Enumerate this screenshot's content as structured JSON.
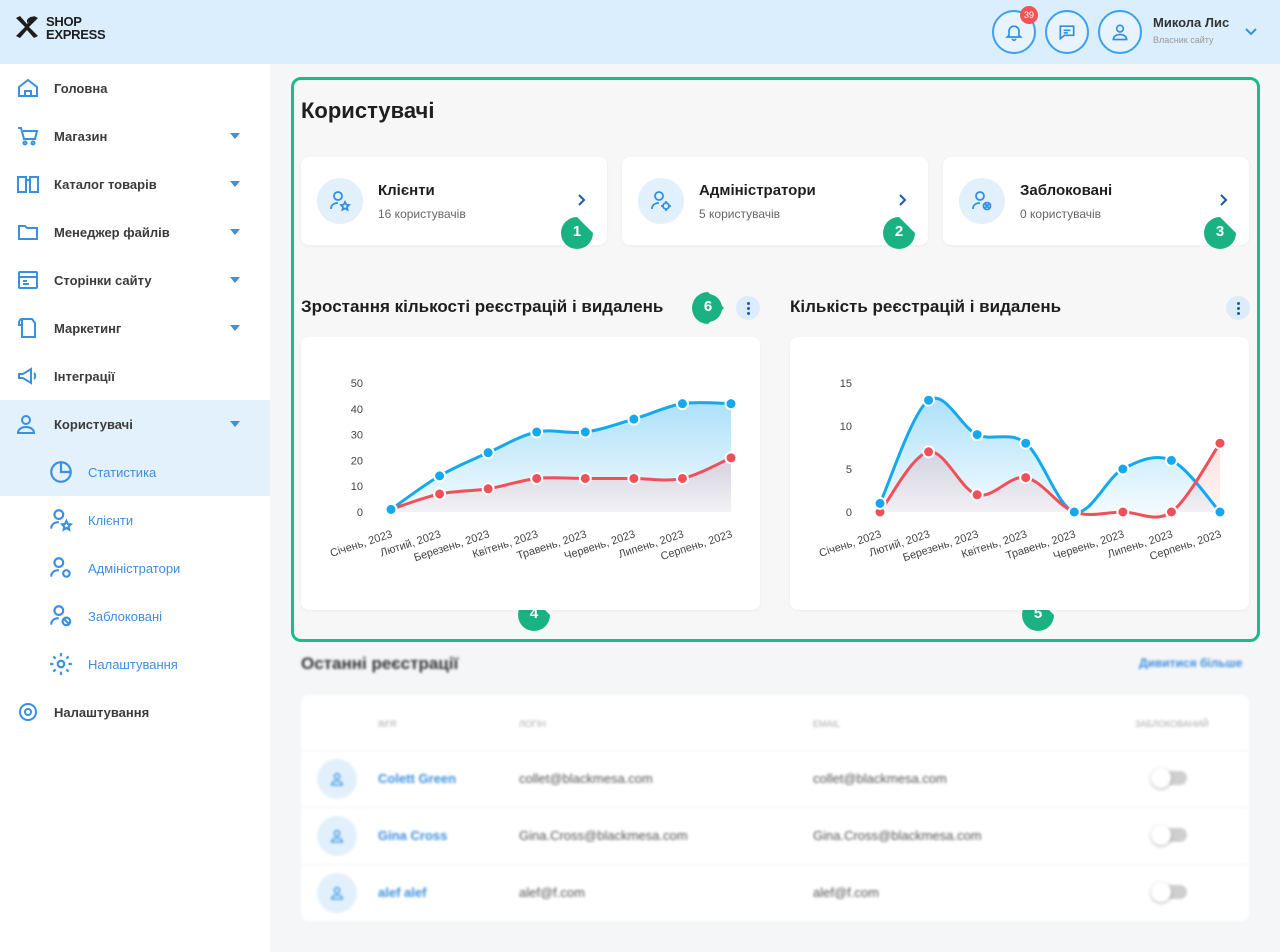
{
  "header": {
    "logo_line1": "SHOP",
    "logo_line2": "EXPRESS",
    "notification_count": "39",
    "user_name": "Микола Лис",
    "user_role": "Власник сайту"
  },
  "sidebar": {
    "items": [
      {
        "label": "Головна",
        "icon": "home-icon"
      },
      {
        "label": "Магазин",
        "icon": "cart-icon"
      },
      {
        "label": "Каталог товарів",
        "icon": "catalog-icon"
      },
      {
        "label": "Менеджер файлів",
        "icon": "folder-icon"
      },
      {
        "label": "Сторінки сайту",
        "icon": "pages-icon"
      },
      {
        "label": "Маркетинг",
        "icon": "marketing-icon"
      },
      {
        "label": "Інтеграції",
        "icon": "megaphone-icon"
      },
      {
        "label": "Користувачі",
        "icon": "users-icon"
      },
      {
        "label": "Налаштування",
        "icon": "gear-icon"
      }
    ],
    "subitems": [
      {
        "label": "Статистика",
        "icon": "chart-pie-icon"
      },
      {
        "label": "Клієнти",
        "icon": "user-star-icon"
      },
      {
        "label": "Адміністратори",
        "icon": "user-gear-icon"
      },
      {
        "label": "Заблоковані",
        "icon": "user-blocked-icon"
      },
      {
        "label": "Налаштування",
        "icon": "gear-icon"
      }
    ]
  },
  "main": {
    "title": "Користувачі",
    "cards": [
      {
        "title": "Клієнти",
        "subtitle": "16 користувачів",
        "marker": "1"
      },
      {
        "title": "Адміністратори",
        "subtitle": "5 користувачів",
        "marker": "2"
      },
      {
        "title": "Заблоковані",
        "subtitle": "0 користувачів",
        "marker": "3"
      }
    ],
    "markers": {
      "chart1": "4",
      "chart2": "5",
      "menu": "6"
    }
  },
  "chart_data": [
    {
      "type": "area",
      "title": "Зростання кількості реєстрацій і видалень",
      "categories": [
        "Січень, 2023",
        "Лютий, 2023",
        "Березень, 2023",
        "Квітень, 2023",
        "Травень, 2023",
        "Червень, 2023",
        "Липень, 2023",
        "Серпень, 2023"
      ],
      "y_ticks": [
        0,
        10,
        20,
        30,
        40,
        50
      ],
      "ylim": [
        0,
        50
      ],
      "series": [
        {
          "values": [
            1,
            14,
            23,
            31,
            31,
            36,
            42,
            42
          ],
          "color": "#14a9ee"
        },
        {
          "values": [
            1,
            7,
            9,
            13,
            13,
            13,
            13,
            21
          ],
          "color": "#f0505a"
        }
      ]
    },
    {
      "type": "area",
      "title": "Кількість реєстрацій і видалень",
      "categories": [
        "Січень, 2023",
        "Лютий, 2023",
        "Березень, 2023",
        "Квітень, 2023",
        "Травень, 2023",
        "Червень, 2023",
        "Липень, 2023",
        "Серпень, 2023"
      ],
      "y_ticks": [
        0,
        5,
        10,
        15
      ],
      "ylim": [
        0,
        15
      ],
      "series": [
        {
          "values": [
            1,
            13,
            9,
            8,
            0,
            5,
            6,
            0
          ],
          "color": "#14a9ee"
        },
        {
          "values": [
            0,
            7,
            2,
            4,
            0,
            0,
            0,
            8
          ],
          "color": "#f0505a"
        }
      ]
    }
  ],
  "recent": {
    "title": "Останні реєстрації",
    "see_more": "Дивитися більше",
    "columns": [
      "Ім'я",
      "Логін",
      "Email",
      "Заблокований"
    ],
    "rows": [
      {
        "name": "Colett Green",
        "login": "collet@blackmesa.com",
        "email": "collet@blackmesa.com"
      },
      {
        "name": "Gina Cross",
        "login": "Gina.Cross@blackmesa.com",
        "email": "Gina.Cross@blackmesa.com"
      },
      {
        "name": "alef alef",
        "login": "alef@f.com",
        "email": "alef@f.com"
      }
    ]
  }
}
